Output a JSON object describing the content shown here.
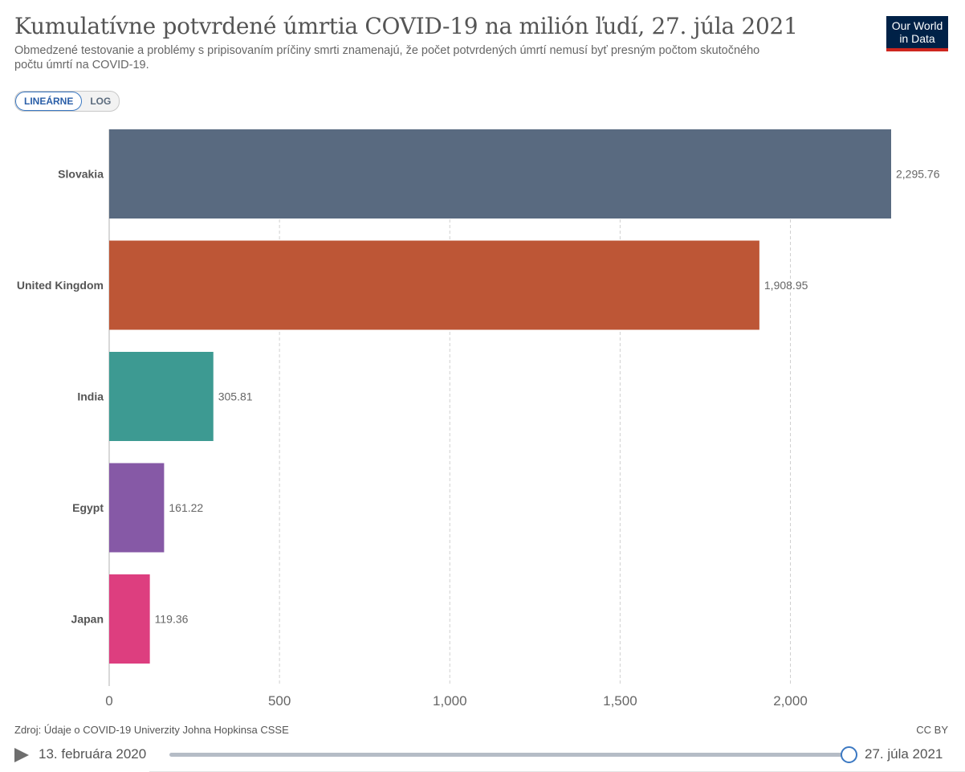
{
  "header": {
    "title": "Kumulatívne potvrdené úmrtia COVID-19 na milión ľudí, 27. júla 2021",
    "subtitle": "Obmedzené testovanie a problémy s pripisovaním príčiny smrti znamenajú, že počet potvrdených úmrtí nemusí byť presným počtom skutočného počtu úmrtí na COVID-19.",
    "logo_line1": "Our World",
    "logo_line2": "in Data",
    "logo_color": "#002147",
    "logo_accent": "#ce261e"
  },
  "scale_toggle": {
    "linear_label": "LINEÁRNE",
    "log_label": "LOG",
    "selected": "linear"
  },
  "chart_data": {
    "type": "bar",
    "orientation": "horizontal",
    "categories": [
      "Slovakia",
      "United Kingdom",
      "India",
      "Egypt",
      "Japan"
    ],
    "values": [
      2295.76,
      1908.95,
      305.81,
      161.22,
      119.36
    ],
    "value_labels": [
      "2,295.76",
      "1,908.95",
      "305.81",
      "161.22",
      "119.36"
    ],
    "colors": [
      "#596a80",
      "#bd5636",
      "#3d9a92",
      "#8659a6",
      "#dd3e7f"
    ],
    "xlim": [
      0,
      2295.76
    ],
    "ticks": [
      0,
      500,
      1000,
      1500,
      2000
    ],
    "tick_labels": [
      "0",
      "500",
      "1,000",
      "1,500",
      "2,000"
    ],
    "grid": true,
    "title": "Kumulatívne potvrdené úmrtia COVID-19 na milión ľudí, 27. júla 2021",
    "xlabel": "",
    "ylabel": ""
  },
  "footer": {
    "source": "Zdroj: Údaje o COVID-19 Univerzity Johna Hopkinsa CSSE",
    "license": "CC BY"
  },
  "timeline": {
    "start_date": "13. februára 2020",
    "end_date": "27. júla 2021",
    "position": 1.0
  }
}
